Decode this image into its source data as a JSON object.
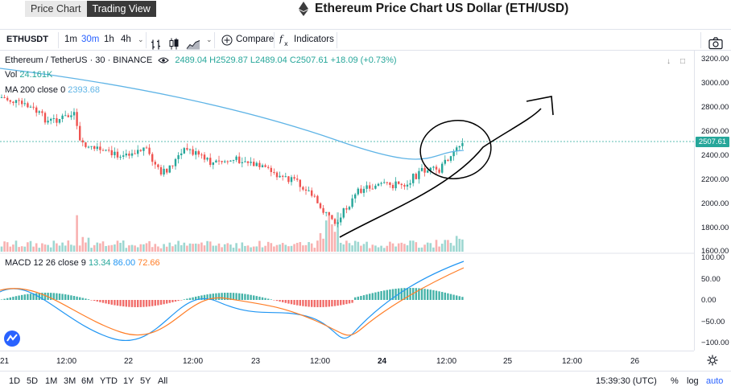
{
  "view_tabs": [
    {
      "label": "Price Chart",
      "active": false
    },
    {
      "label": "Trading View",
      "active": true
    }
  ],
  "title": "Ethereum Price Chart US Dollar (ETH/USD)",
  "toolbar": {
    "symbol": "ETHUSDT",
    "timeframes": [
      "1m",
      "30m",
      "1h",
      "4h"
    ],
    "active_timeframe": "30m",
    "compare_label": "Compare",
    "indicators_label": "Indicators"
  },
  "legend": {
    "pair": "Ethereum / TetherUS · 30 · BINANCE",
    "ohlc": "2489.04 H2529.87 L2489.04 C2507.61 +18.09 (+0.73%)",
    "vol_label": "Vol",
    "vol_value": "24.161K",
    "ma_label": "MA 200 close 0",
    "ma_value": "2393.68",
    "macd_label": "MACD 12 26 close 9",
    "macd_hist": "13.34",
    "macd_line": "86.00",
    "macd_signal": "72.66"
  },
  "price_axis": {
    "ticks": [
      "3200.00",
      "3000.00",
      "2800.00",
      "2600.00",
      "2400.00",
      "2200.00",
      "2000.00",
      "1800.00",
      "1600.00"
    ],
    "last_price": "2507.61"
  },
  "macd_axis": {
    "ticks": [
      "100.00",
      "50.00",
      "0.00",
      "−50.00",
      "−100.00"
    ]
  },
  "time_axis": {
    "ticks": [
      {
        "label": "21",
        "bold": false
      },
      {
        "label": "12:00",
        "bold": false
      },
      {
        "label": "22",
        "bold": false
      },
      {
        "label": "12:00",
        "bold": false
      },
      {
        "label": "23",
        "bold": false
      },
      {
        "label": "12:00",
        "bold": false
      },
      {
        "label": "24",
        "bold": true
      },
      {
        "label": "12:00",
        "bold": false
      },
      {
        "label": "25",
        "bold": false
      },
      {
        "label": "12:00",
        "bold": false
      },
      {
        "label": "26",
        "bold": false
      }
    ]
  },
  "ranges": [
    "1D",
    "5D",
    "1M",
    "3M",
    "6M",
    "YTD",
    "1Y",
    "5Y",
    "All"
  ],
  "bottom": {
    "clock": "15:39:30 (UTC)",
    "percent": "%",
    "log": "log",
    "auto": "auto"
  },
  "colors": {
    "up": "#26a69a",
    "down": "#ef5350",
    "ma": "#5fb4e6",
    "macd": "#2196f3",
    "signal": "#ff7d26",
    "accent": "#2962ff"
  },
  "icons": [
    "ethereum-icon",
    "bar-style-icon",
    "candle-style-icon",
    "area-style-icon",
    "plus-circle-icon",
    "fx-icon",
    "camera-icon",
    "gear-icon",
    "eye-icon",
    "tradingview-logo-icon"
  ]
}
